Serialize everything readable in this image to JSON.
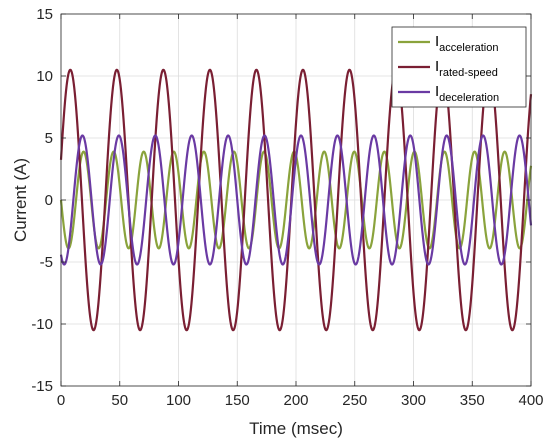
{
  "chart_data": {
    "type": "line",
    "xlabel": "Time (msec)",
    "ylabel": "Current (A)",
    "xlim": [
      0,
      400
    ],
    "ylim": [
      -15,
      15
    ],
    "xticks": [
      0,
      50,
      100,
      150,
      200,
      250,
      300,
      350,
      400
    ],
    "yticks": [
      -15,
      -10,
      -5,
      0,
      5,
      10,
      15
    ],
    "grid": true,
    "legend_position": "top-right",
    "series": [
      {
        "name_main": "I",
        "name_sub": "acceleration",
        "color": "#8aa33c",
        "amplitude": 3.9,
        "period_ms": 25.6,
        "phase_deg": 180,
        "x": [
          0,
          6.4,
          12.8,
          19.2,
          25.6,
          32,
          38.4,
          44.8,
          51.2,
          400
        ],
        "y": [
          0,
          -3.9,
          0,
          3.9,
          0,
          -3.9,
          0,
          3.9,
          0,
          0
        ]
      },
      {
        "name_main": "I",
        "name_sub": "rated-speed",
        "color": "#7a1f33",
        "amplitude": 10.5,
        "period_ms": 39.6,
        "phase_deg": 18,
        "x": [
          0,
          3.96,
          13.86,
          23.76,
          33.66,
          43.56,
          400
        ],
        "y": [
          3.2,
          10.5,
          0,
          -10.5,
          0,
          10.5,
          8.9
        ]
      },
      {
        "name_main": "I",
        "name_sub": "deceleration",
        "color": "#6a3aa3",
        "amplitude": 5.2,
        "period_ms": 31.0,
        "phase_deg": 238,
        "x": [
          0,
          3.05,
          10.8,
          18.55,
          26.3,
          34.05,
          400
        ],
        "y": [
          -4.4,
          -5.2,
          0,
          5.2,
          0,
          -5.2,
          -5.0
        ]
      }
    ]
  }
}
